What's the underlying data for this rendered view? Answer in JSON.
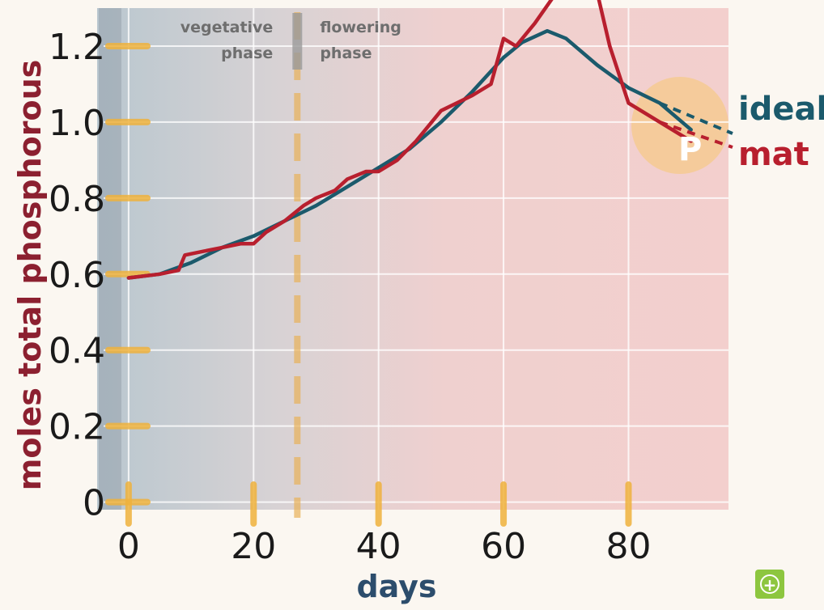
{
  "chart_data": {
    "type": "line",
    "xlabel": "days",
    "ylabel": "moles total phosphorous",
    "xlim": [
      -4,
      96
    ],
    "ylim": [
      -0.02,
      1.3
    ],
    "x_ticks": [
      0,
      20,
      40,
      60,
      80
    ],
    "x_tick_labels": [
      "0",
      "20",
      "40",
      "60",
      "80"
    ],
    "y_ticks": [
      0,
      0.2,
      0.4,
      0.6,
      0.8,
      1.0,
      1.2
    ],
    "y_tick_labels": [
      "0",
      "0.2",
      "0.4",
      "0.6",
      "0.8",
      "1.0",
      "1.2"
    ],
    "grid": true,
    "legend_placement": "right",
    "phases": [
      {
        "label_line1": "vegetative",
        "label_line2": "phase",
        "x_start": 0,
        "x_end": 27
      },
      {
        "label_line1": "flowering",
        "label_line2": "phase",
        "x_start": 27,
        "x_end": 90
      }
    ],
    "phase_boundary_day": 27,
    "series": [
      {
        "name": "ideal",
        "color": "#1b5a6c",
        "x": [
          0,
          5,
          10,
          15,
          20,
          25,
          30,
          35,
          40,
          45,
          50,
          55,
          60,
          63,
          67,
          70,
          75,
          80,
          85,
          90
        ],
        "y": [
          0.59,
          0.6,
          0.63,
          0.67,
          0.7,
          0.74,
          0.78,
          0.83,
          0.88,
          0.93,
          1.0,
          1.08,
          1.17,
          1.21,
          1.24,
          1.22,
          1.15,
          1.09,
          1.05,
          0.98
        ]
      },
      {
        "name": "mat",
        "color": "#b81f2e",
        "x": [
          0,
          5,
          8,
          9,
          12,
          15,
          18,
          20,
          22,
          25,
          28,
          30,
          33,
          35,
          38,
          40,
          43,
          46,
          50,
          55,
          58,
          60,
          62,
          65,
          68,
          70,
          73,
          75,
          77,
          80,
          85,
          90
        ],
        "y": [
          0.59,
          0.6,
          0.61,
          0.65,
          0.66,
          0.67,
          0.68,
          0.68,
          0.71,
          0.74,
          0.78,
          0.8,
          0.82,
          0.85,
          0.87,
          0.87,
          0.9,
          0.95,
          1.03,
          1.07,
          1.1,
          1.22,
          1.2,
          1.26,
          1.33,
          1.38,
          1.36,
          1.34,
          1.2,
          1.05,
          1.0,
          0.95
        ]
      }
    ]
  },
  "zoom_button": {
    "icon": "zoom-in-icon",
    "glyph": "+",
    "color": "#8dc63f"
  }
}
